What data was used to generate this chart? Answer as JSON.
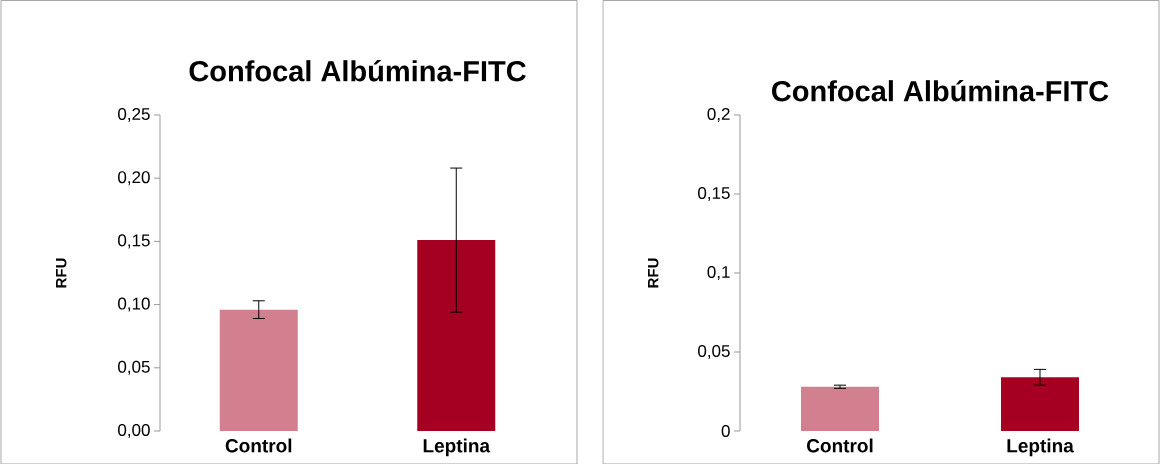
{
  "chart_data": [
    {
      "type": "bar",
      "title": "Confocal Albúmina-FITC",
      "ylabel": "RFU",
      "categories": [
        "Control",
        "Leptina"
      ],
      "values": [
        0.096,
        0.151
      ],
      "errors": [
        0.007,
        0.057
      ],
      "colors": [
        "#d27f8f",
        "#a50021"
      ],
      "ylim": [
        0,
        0.25
      ],
      "yticks": [
        {
          "value": 0,
          "label": "0,00"
        },
        {
          "value": 0.05,
          "label": "0,05"
        },
        {
          "value": 0.1,
          "label": "0,10"
        },
        {
          "value": 0.15,
          "label": "0,15"
        },
        {
          "value": 0.2,
          "label": "0,20"
        },
        {
          "value": 0.25,
          "label": "0,25"
        }
      ]
    },
    {
      "type": "bar",
      "title": "Confocal Albúmina-FITC",
      "ylabel": "RFU",
      "categories": [
        "Control",
        "Leptina"
      ],
      "values": [
        0.028,
        0.034
      ],
      "errors": [
        0.001,
        0.005
      ],
      "colors": [
        "#d27f8f",
        "#a50021"
      ],
      "ylim": [
        0,
        0.2
      ],
      "yticks": [
        {
          "value": 0,
          "label": "0"
        },
        {
          "value": 0.05,
          "label": "0,05"
        },
        {
          "value": 0.1,
          "label": "0,1"
        },
        {
          "value": 0.15,
          "label": "0,15"
        },
        {
          "value": 0.2,
          "label": "0,2"
        }
      ]
    }
  ]
}
